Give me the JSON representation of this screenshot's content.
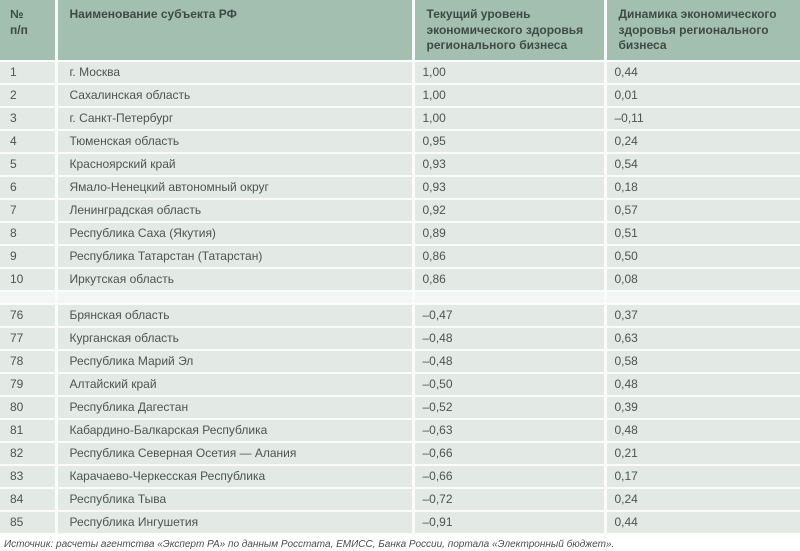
{
  "table": {
    "header": {
      "col_num": "№\nп/п",
      "col_region": "Наименование субъекта РФ",
      "col_current": "Текущий уровень экономического здоровья регионального бизнеса",
      "col_dynamics": "Динамика экономического здоровья регионального бизнеса"
    },
    "rows_top": [
      {
        "num": "1",
        "region": "г. Москва",
        "current": "1,00",
        "dynamics": "0,44"
      },
      {
        "num": "2",
        "region": "Сахалинская область",
        "current": "1,00",
        "dynamics": "0,01"
      },
      {
        "num": "3",
        "region": "г. Санкт-Петербург",
        "current": "1,00",
        "dynamics": "–0,11"
      },
      {
        "num": "4",
        "region": "Тюменская область",
        "current": "0,95",
        "dynamics": "0,24"
      },
      {
        "num": "5",
        "region": "Красноярский край",
        "current": "0,93",
        "dynamics": "0,54"
      },
      {
        "num": "6",
        "region": "Ямало-Ненецкий автономный округ",
        "current": "0,93",
        "dynamics": "0,18"
      },
      {
        "num": "7",
        "region": "Ленинградская область",
        "current": "0,92",
        "dynamics": "0,57"
      },
      {
        "num": "8",
        "region": "Республика Саха (Якутия)",
        "current": "0,89",
        "dynamics": "0,51"
      },
      {
        "num": "9",
        "region": "Республика Татарстан (Татарстан)",
        "current": "0,86",
        "dynamics": "0,50"
      },
      {
        "num": "10",
        "region": "Иркутская область",
        "current": "0,86",
        "dynamics": "0,08"
      }
    ],
    "rows_bottom": [
      {
        "num": "76",
        "region": "Брянская область",
        "current": "–0,47",
        "dynamics": "0,37"
      },
      {
        "num": "77",
        "region": "Курганская область",
        "current": "–0,48",
        "dynamics": "0,63"
      },
      {
        "num": "78",
        "region": "Республика Марий Эл",
        "current": "–0,48",
        "dynamics": "0,58"
      },
      {
        "num": "79",
        "region": "Алтайский край",
        "current": "–0,50",
        "dynamics": "0,48"
      },
      {
        "num": "80",
        "region": "Республика Дагестан",
        "current": "–0,52",
        "dynamics": "0,39"
      },
      {
        "num": "81",
        "region": "Кабардино-Балкарская Республика",
        "current": "–0,63",
        "dynamics": "0,48"
      },
      {
        "num": "82",
        "region": "Республика Северная Осетия — Алания",
        "current": "–0,66",
        "dynamics": "0,21"
      },
      {
        "num": "83",
        "region": "Карачаево-Черкесская Республика",
        "current": "–0,66",
        "dynamics": "0,17"
      },
      {
        "num": "84",
        "region": "Республика Тыва",
        "current": "–0,72",
        "dynamics": "0,24"
      },
      {
        "num": "85",
        "region": "Республика Ингушетия",
        "current": "–0,91",
        "dynamics": "0,44"
      }
    ]
  },
  "footer": {
    "source": "Источник: расчеты агентства «Эксперт РА» по данным Росстата, ЕМИСС, Банка России, портала «Электронный бюджет»."
  },
  "colors": {
    "header_bg": "#a2bfb0",
    "header_text": "#3e4b45",
    "row_bg": "#e3e9e5",
    "row_text": "#4d5451",
    "gap_bg": "#f3f6f5",
    "sep": "#fafcfb",
    "footer_text": "#4b4f4d"
  }
}
